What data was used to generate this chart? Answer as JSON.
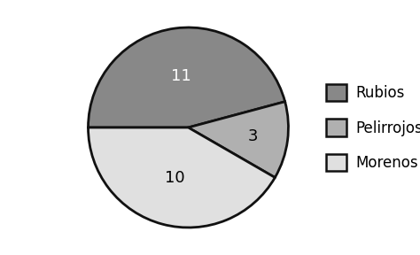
{
  "labels": [
    "Rubios",
    "Pelirrojos",
    "Morenos"
  ],
  "values": [
    11,
    3,
    10
  ],
  "colors": [
    "#888888",
    "#b0b0b0",
    "#e0e0e0"
  ],
  "text_labels": [
    "11",
    "3",
    "10"
  ],
  "legend_labels": [
    "Rubios",
    "Pelirrojos",
    "Morenos"
  ],
  "background_color": "#ffffff",
  "edge_color": "#111111",
  "edge_linewidth": 2.0,
  "label_fontsize": 13,
  "legend_fontsize": 12,
  "startangle": 180,
  "text_colors": [
    "white",
    "black",
    "black"
  ],
  "text_r": [
    0.52,
    0.65,
    0.52
  ]
}
